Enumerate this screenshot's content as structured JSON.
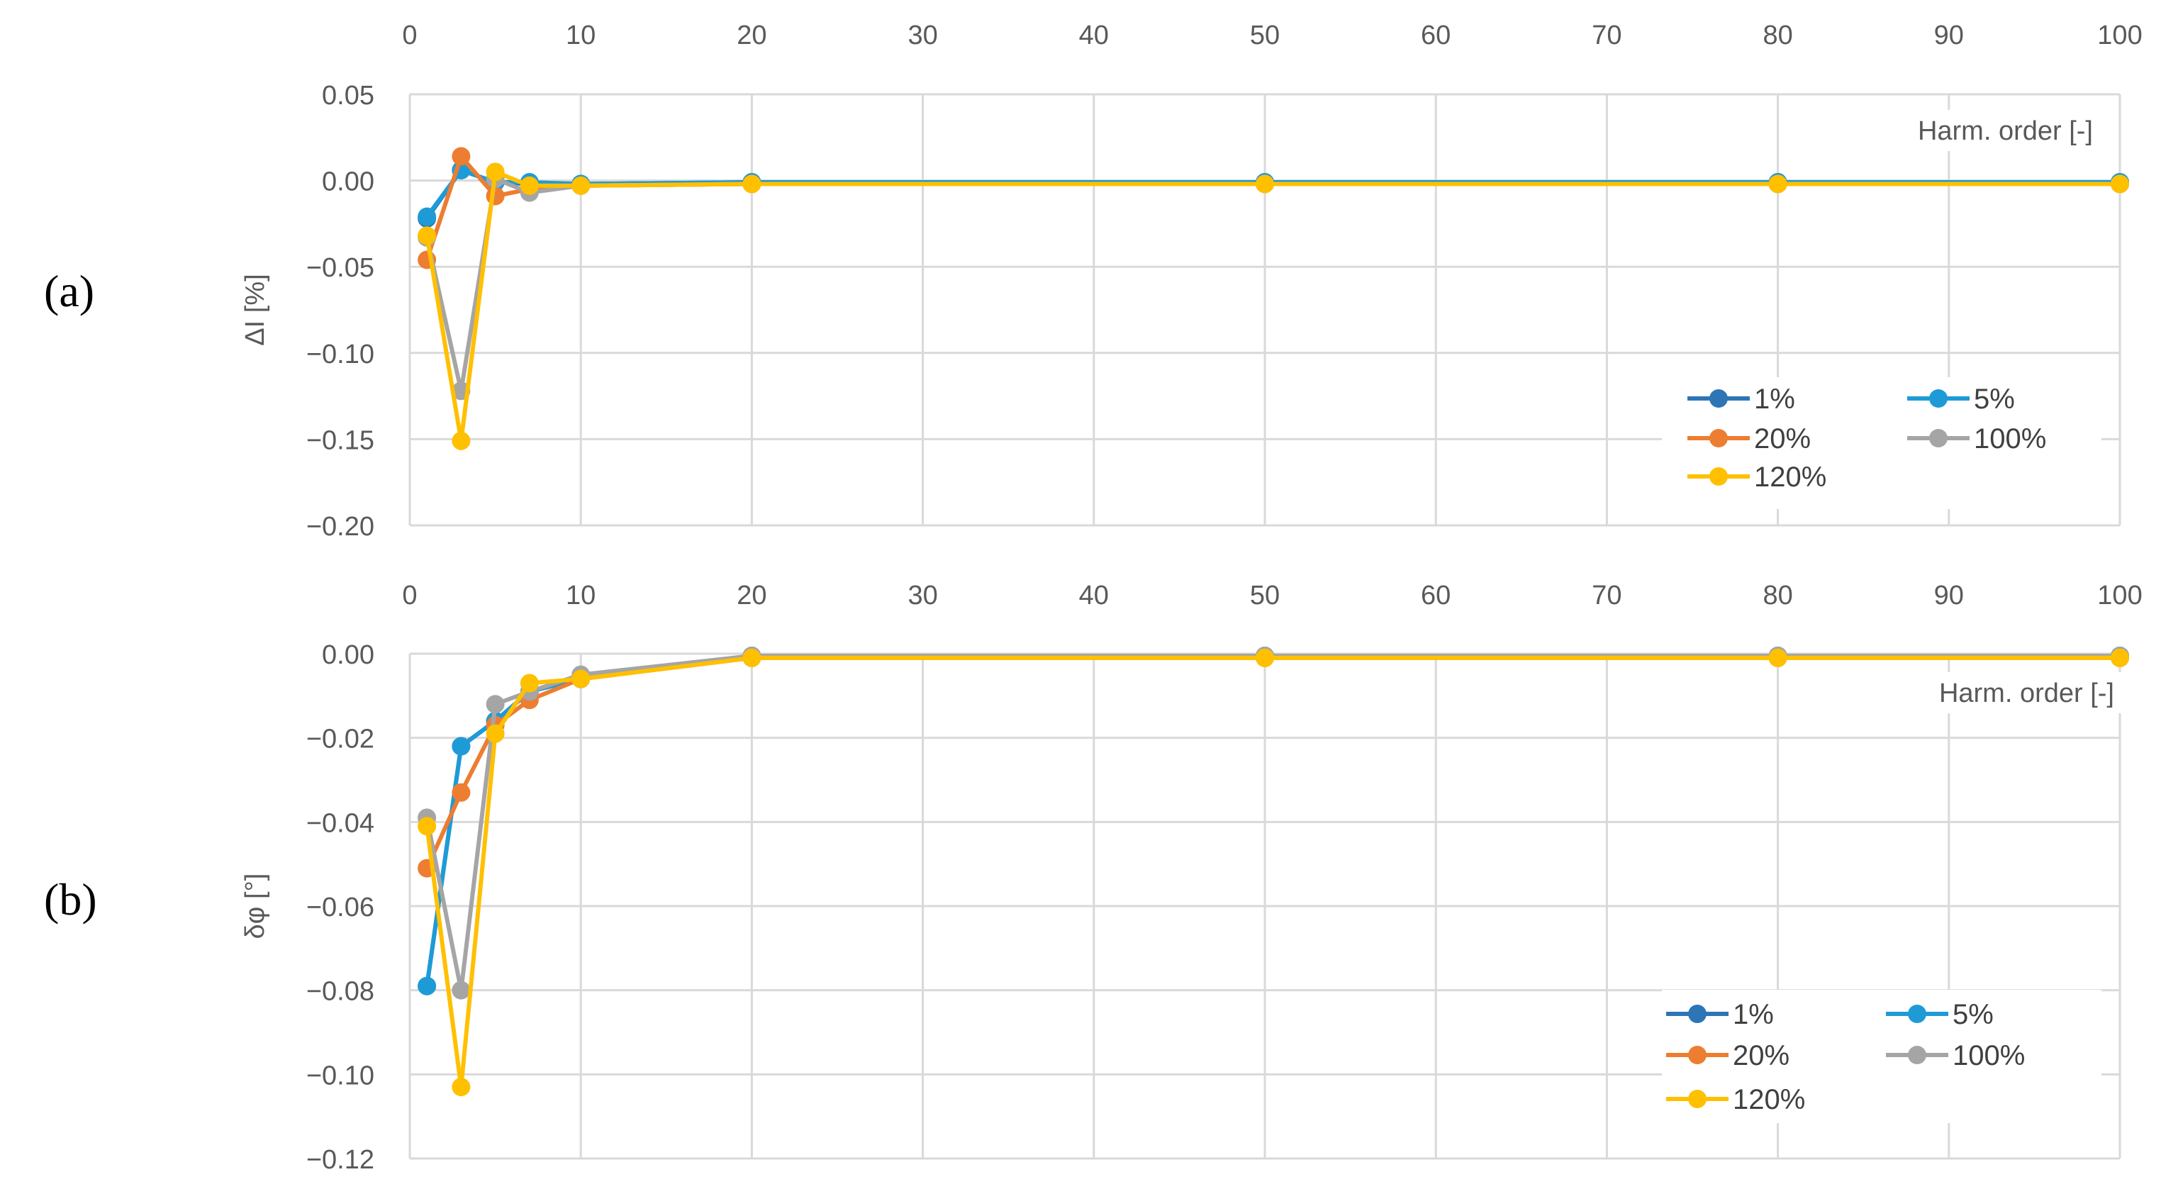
{
  "chart_data": [
    {
      "panel_label": "(a)",
      "type": "line",
      "x_tick_labels": [
        "0",
        "10",
        "20",
        "30",
        "40",
        "50",
        "60",
        "70",
        "80",
        "90",
        "100"
      ],
      "y_tick_labels": [
        "0.05",
        "0.00",
        "−0.05",
        "−0.10",
        "−0.15",
        "−0.20"
      ],
      "xlabel": "Harm. order [-]",
      "ylabel": "ΔI [%]",
      "xlim": [
        0,
        100
      ],
      "ylim": [
        -0.2,
        0.05
      ],
      "grid": true,
      "legend_position": "bottom-right",
      "x": [
        1,
        3,
        5,
        7,
        10,
        20,
        50,
        80,
        100
      ],
      "series": [
        {
          "name": "1%",
          "color": "#2E75B6",
          "values": [
            -0.022,
            0.006,
            -0.001,
            -0.002,
            -0.002,
            -0.001,
            -0.001,
            -0.001,
            -0.001
          ]
        },
        {
          "name": "5%",
          "color": "#1E9BD7",
          "values": [
            -0.021,
            0.006,
            -0.001,
            -0.001,
            -0.002,
            -0.001,
            -0.001,
            -0.001,
            -0.001
          ]
        },
        {
          "name": "20%",
          "color": "#ED7D31",
          "values": [
            -0.046,
            0.014,
            -0.009,
            -0.005,
            -0.003,
            -0.002,
            -0.002,
            -0.002,
            -0.002
          ]
        },
        {
          "name": "100%",
          "color": "#A5A5A5",
          "values": [
            -0.033,
            -0.122,
            0.001,
            -0.007,
            -0.003,
            -0.002,
            -0.002,
            -0.002,
            -0.002
          ]
        },
        {
          "name": "120%",
          "color": "#FFC000",
          "values": [
            -0.032,
            -0.151,
            0.005,
            -0.003,
            -0.003,
            -0.002,
            -0.002,
            -0.002,
            -0.002
          ]
        }
      ]
    },
    {
      "panel_label": "(b)",
      "type": "line",
      "x_tick_labels": [
        "0",
        "10",
        "20",
        "30",
        "40",
        "50",
        "60",
        "70",
        "80",
        "90",
        "100"
      ],
      "y_tick_labels": [
        "0.00",
        "−0.02",
        "−0.04",
        "−0.06",
        "−0.08",
        "−0.10",
        "−0.12"
      ],
      "xlabel": "Harm. order [-]",
      "ylabel": "δφ [°]",
      "xlim": [
        0,
        100
      ],
      "ylim": [
        -0.12,
        0.0
      ],
      "grid": true,
      "legend_position": "bottom-right",
      "x": [
        1,
        3,
        5,
        7,
        10,
        20,
        50,
        80,
        100
      ],
      "series": [
        {
          "name": "1%",
          "color": "#2E75B6",
          "values": [
            -0.079,
            -0.022,
            -0.016,
            -0.009,
            -0.006,
            -0.0005,
            -0.0005,
            -0.0005,
            -0.0005
          ]
        },
        {
          "name": "5%",
          "color": "#1E9BD7",
          "values": [
            -0.079,
            -0.022,
            -0.016,
            -0.009,
            -0.006,
            -0.0005,
            -0.0005,
            -0.0005,
            -0.0005
          ]
        },
        {
          "name": "20%",
          "color": "#ED7D31",
          "values": [
            -0.051,
            -0.033,
            -0.017,
            -0.011,
            -0.006,
            -0.001,
            -0.001,
            -0.001,
            -0.001
          ]
        },
        {
          "name": "100%",
          "color": "#A5A5A5",
          "values": [
            -0.039,
            -0.08,
            -0.012,
            -0.009,
            -0.005,
            -0.0005,
            -0.0005,
            -0.0005,
            -0.0005
          ]
        },
        {
          "name": "120%",
          "color": "#FFC000",
          "values": [
            -0.041,
            -0.103,
            -0.019,
            -0.007,
            -0.006,
            -0.001,
            -0.001,
            -0.001,
            -0.001
          ]
        }
      ]
    }
  ]
}
